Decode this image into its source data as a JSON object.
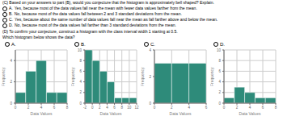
{
  "annotations": [
    "(C) Based on your answers to part (B), would you conjecture that the histogram is approximately bell shaped? Explain.",
    "A.",
    "Yes, because most of the data values fall near the mean with fewer data values farther from the mean.",
    "B.",
    "No, because most of the data values fall between 2 and 3 standard deviations from the mean.",
    "C.",
    "Yes, because about the same number of data values fall near the mean as fall farther above and below the mean.",
    "D.",
    "No, because most of the data values fall farther than 3 standard deviations from the mean.",
    "(D) To confirm your conjecture, construct a histogram with the class interval width 1 starting at 0.5.",
    "Which histogram below shows the data?"
  ],
  "chart_data": [
    {
      "type": "histogram",
      "title": "A.",
      "bins": [
        0,
        1.6,
        3.2,
        4.8,
        6.4,
        8
      ],
      "values": [
        1,
        3,
        4,
        1,
        1
      ],
      "color": "#2e8b7a",
      "x_label": "Data Values",
      "y_label": "Frequency",
      "xlim": [
        0,
        8
      ],
      "ylim": [
        0,
        5
      ],
      "xticks": [
        0,
        2,
        4,
        6,
        8
      ],
      "yticks": [
        0,
        2,
        4
      ],
      "grid": true
    },
    {
      "type": "histogram",
      "title": "B.",
      "bins": [
        -2,
        0,
        2,
        4,
        6,
        8,
        10,
        12
      ],
      "values": [
        10,
        8,
        6,
        4,
        1,
        1,
        1
      ],
      "color": "#2e8b7a",
      "x_label": "Data Values",
      "y_label": "Frequency",
      "xlim": [
        -2,
        12
      ],
      "ylim": [
        0,
        10
      ],
      "xticks": [
        -2,
        0,
        2,
        4,
        6,
        8,
        10,
        12
      ],
      "yticks": [
        0,
        2,
        4,
        6,
        8,
        10
      ],
      "grid": true
    },
    {
      "type": "histogram",
      "title": "C.",
      "bins": [
        0,
        2,
        4,
        6
      ],
      "values": [
        3,
        3,
        3
      ],
      "color": "#2e8b7a",
      "x_label": "Data Values",
      "y_label": "Frequency",
      "xlim": [
        0,
        6
      ],
      "ylim": [
        0,
        4
      ],
      "xticks": [
        0,
        2,
        4,
        6
      ],
      "yticks": [
        0,
        2,
        4
      ],
      "grid": true
    },
    {
      "type": "histogram",
      "title": "D.",
      "bins": [
        0,
        1.6,
        3.2,
        4.8,
        6.4,
        8
      ],
      "values": [
        1,
        3,
        2,
        1,
        1
      ],
      "color": "#2e8b7a",
      "x_label": "Data Values",
      "y_label": "Frequency",
      "xlim": [
        0,
        8
      ],
      "ylim": [
        0,
        10
      ],
      "xticks": [
        0,
        2,
        4,
        6,
        8
      ],
      "yticks": [
        0,
        2,
        4,
        6,
        8,
        10
      ],
      "grid": true
    }
  ]
}
